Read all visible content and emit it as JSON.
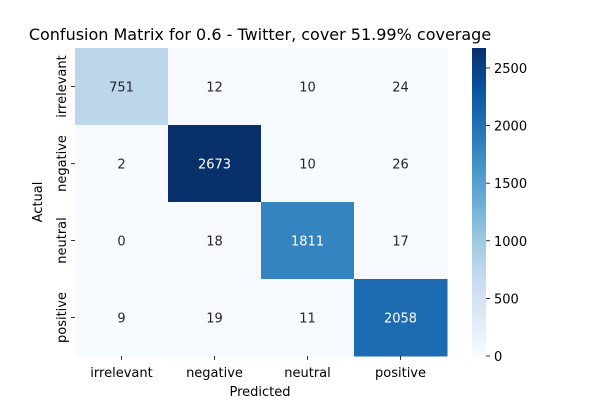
{
  "chart_data": {
    "type": "heatmap",
    "title": "Confusion Matrix for 0.6 - Twitter, cover 51.99% coverage",
    "xlabel": "Predicted",
    "ylabel": "Actual",
    "x_categories": [
      "irrelevant",
      "negative",
      "neutral",
      "positive"
    ],
    "y_categories": [
      "irrelevant",
      "negative",
      "neutral",
      "positive"
    ],
    "values": [
      [
        751,
        12,
        10,
        24
      ],
      [
        2,
        2673,
        10,
        26
      ],
      [
        0,
        18,
        1811,
        17
      ],
      [
        9,
        19,
        11,
        2058
      ]
    ],
    "colormap": "Blues",
    "colorbar": {
      "range": [
        0,
        2673
      ],
      "ticks": [
        0,
        500,
        1000,
        1500,
        2000,
        2500
      ]
    },
    "colors": {
      "low": "#f7fbff",
      "high": "#08306b",
      "text_dark": "#262626",
      "text_light": "#ffffff"
    }
  }
}
